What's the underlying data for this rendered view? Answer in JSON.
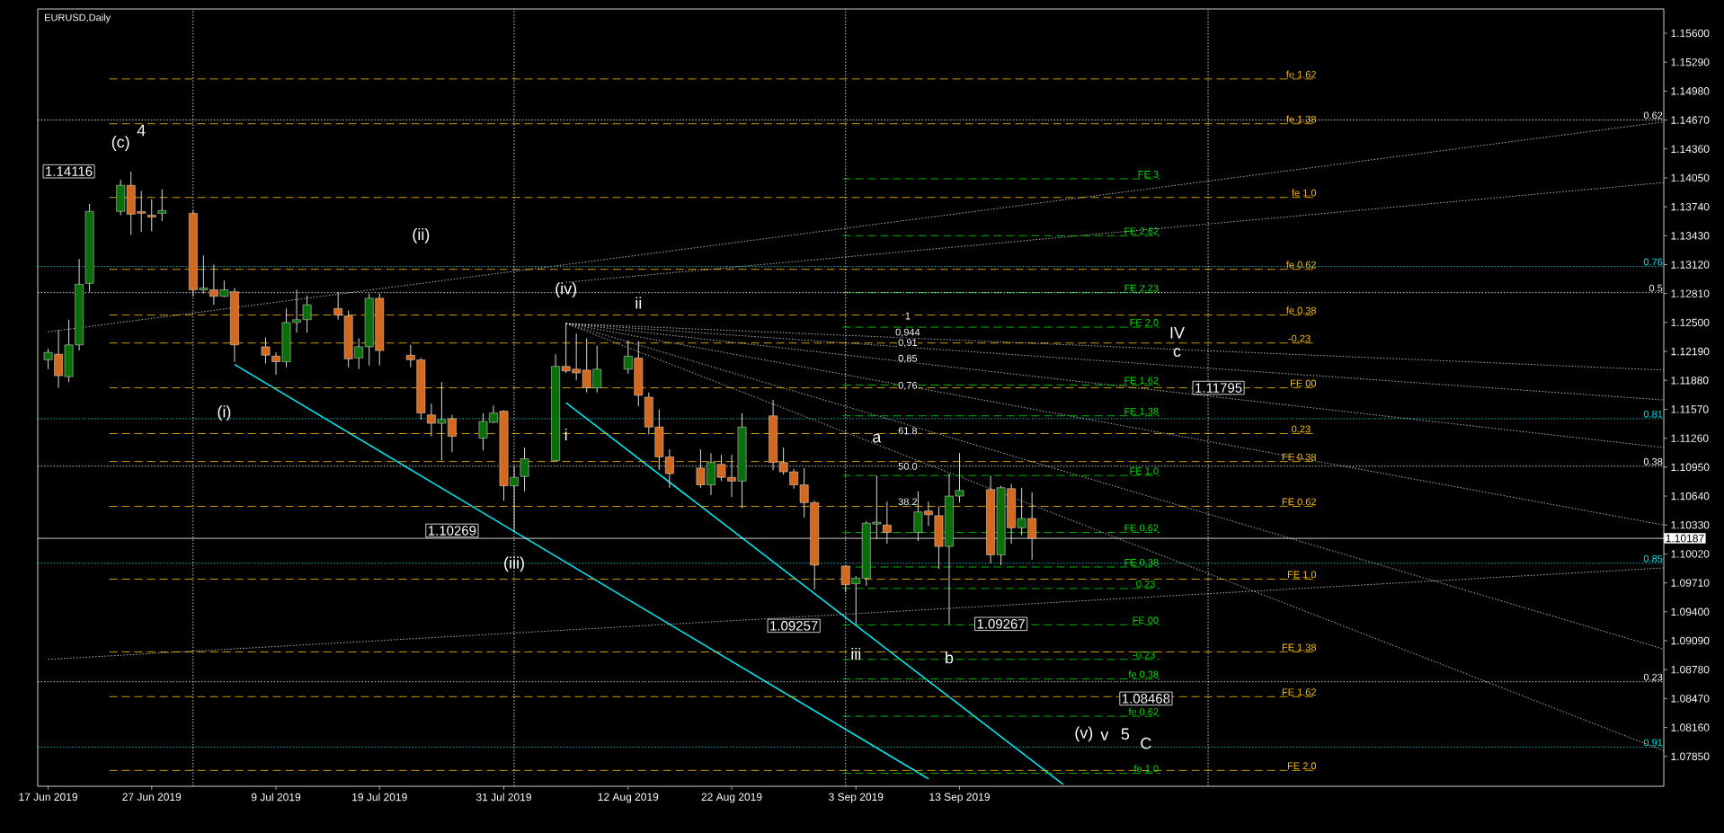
{
  "chart_data": {
    "type": "candlestick",
    "title": "EURUSD,Daily",
    "x": [
      "2019-06-17",
      "2019-06-18",
      "2019-06-19",
      "2019-06-20",
      "2019-06-21",
      "2019-06-24",
      "2019-06-25",
      "2019-06-26",
      "2019-06-27",
      "2019-06-28",
      "2019-07-01",
      "2019-07-02",
      "2019-07-03",
      "2019-07-04",
      "2019-07-05",
      "2019-07-08",
      "2019-07-09",
      "2019-07-10",
      "2019-07-11",
      "2019-07-12",
      "2019-07-15",
      "2019-07-16",
      "2019-07-17",
      "2019-07-18",
      "2019-07-19",
      "2019-07-22",
      "2019-07-23",
      "2019-07-24",
      "2019-07-25",
      "2019-07-26",
      "2019-07-29",
      "2019-07-30",
      "2019-07-31",
      "2019-08-01",
      "2019-08-02",
      "2019-08-05",
      "2019-08-06",
      "2019-08-07",
      "2019-08-08",
      "2019-08-09",
      "2019-08-12",
      "2019-08-13",
      "2019-08-14",
      "2019-08-15",
      "2019-08-16",
      "2019-08-19",
      "2019-08-20",
      "2019-08-21",
      "2019-08-22",
      "2019-08-23",
      "2019-08-26",
      "2019-08-27",
      "2019-08-28",
      "2019-08-29",
      "2019-08-30",
      "2019-09-02",
      "2019-09-03",
      "2019-09-04",
      "2019-09-05",
      "2019-09-06",
      "2019-09-09",
      "2019-09-10",
      "2019-09-11",
      "2019-09-12",
      "2019-09-13",
      "2019-09-16",
      "2019-09-17",
      "2019-09-18",
      "2019-09-19",
      "2019-09-20"
    ],
    "ohlc": [
      [
        1.121,
        1.1222,
        1.12,
        1.1218
      ],
      [
        1.1216,
        1.1242,
        1.118,
        1.1193
      ],
      [
        1.1192,
        1.1253,
        1.1186,
        1.1226
      ],
      [
        1.1226,
        1.1318,
        1.122,
        1.1291
      ],
      [
        1.1292,
        1.1377,
        1.1283,
        1.1369
      ],
      [
        1.1369,
        1.1403,
        1.1365,
        1.1397
      ],
      [
        1.1397,
        1.14116,
        1.1344,
        1.1366
      ],
      [
        1.1369,
        1.1391,
        1.1347,
        1.1367
      ],
      [
        1.1365,
        1.1382,
        1.1348,
        1.1363
      ],
      [
        1.1367,
        1.1393,
        1.1359,
        1.137
      ],
      [
        1.1367,
        1.137,
        1.1278,
        1.1285
      ],
      [
        1.1285,
        1.1322,
        1.1281,
        1.1287
      ],
      [
        1.1285,
        1.1312,
        1.1269,
        1.1278
      ],
      [
        1.1278,
        1.1295,
        1.1277,
        1.1285
      ],
      [
        1.1283,
        1.1287,
        1.1208,
        1.1226
      ],
      [
        1.1224,
        1.1234,
        1.1206,
        1.1215
      ],
      [
        1.1214,
        1.1218,
        1.1194,
        1.1208
      ],
      [
        1.1208,
        1.1265,
        1.1202,
        1.125
      ],
      [
        1.125,
        1.1285,
        1.1239,
        1.1253
      ],
      [
        1.1253,
        1.1279,
        1.1239,
        1.1269
      ],
      [
        1.1265,
        1.1283,
        1.1253,
        1.1258
      ],
      [
        1.1257,
        1.1263,
        1.1202,
        1.1211
      ],
      [
        1.1212,
        1.1233,
        1.12,
        1.1224
      ],
      [
        1.1224,
        1.1281,
        1.1204,
        1.1276
      ],
      [
        1.1276,
        1.1281,
        1.1204,
        1.122
      ],
      [
        1.1215,
        1.1226,
        1.1202,
        1.121
      ],
      [
        1.121,
        1.1212,
        1.1146,
        1.1153
      ],
      [
        1.1151,
        1.1163,
        1.1128,
        1.1142
      ],
      [
        1.1142,
        1.1186,
        1.1102,
        1.1146
      ],
      [
        1.1147,
        1.1151,
        1.1111,
        1.1128
      ],
      [
        1.1126,
        1.1153,
        1.1113,
        1.1144
      ],
      [
        1.1143,
        1.1161,
        1.1142,
        1.1153
      ],
      [
        1.1155,
        1.1156,
        1.1059,
        1.1075
      ],
      [
        1.1075,
        1.1096,
        1.10269,
        1.1084
      ],
      [
        1.1085,
        1.1116,
        1.1069,
        1.1104
      ],
      [
        1.1102,
        1.1216,
        1.1102,
        1.1203
      ],
      [
        1.1203,
        1.1249,
        1.1196,
        1.1198
      ],
      [
        1.12,
        1.1238,
        1.1188,
        1.1196
      ],
      [
        1.1199,
        1.1233,
        1.1175,
        1.118
      ],
      [
        1.118,
        1.1225,
        1.1175,
        1.12
      ],
      [
        1.12,
        1.1231,
        1.1195,
        1.1214
      ],
      [
        1.1212,
        1.123,
        1.116,
        1.1172
      ],
      [
        1.117,
        1.1175,
        1.113,
        1.1138
      ],
      [
        1.1138,
        1.1157,
        1.1092,
        1.1106
      ],
      [
        1.1106,
        1.1114,
        1.1073,
        1.1088
      ],
      [
        1.1094,
        1.1114,
        1.1073,
        1.1076
      ],
      [
        1.1076,
        1.111,
        1.1065,
        1.11
      ],
      [
        1.1098,
        1.1108,
        1.108,
        1.1084
      ],
      [
        1.1084,
        1.1108,
        1.1063,
        1.108
      ],
      [
        1.108,
        1.1153,
        1.1051,
        1.1138
      ],
      [
        1.115,
        1.1167,
        1.1092,
        1.11
      ],
      [
        1.11,
        1.1116,
        1.1087,
        1.109
      ],
      [
        1.109,
        1.1093,
        1.1072,
        1.1076
      ],
      [
        1.1076,
        1.1094,
        1.1041,
        1.1057
      ],
      [
        1.1057,
        1.1059,
        1.0964,
        1.099
      ],
      [
        1.0989,
        1.099,
        1.0961,
        1.0969
      ],
      [
        1.097,
        1.0978,
        1.09257,
        1.0976
      ],
      [
        1.0976,
        1.1037,
        1.0968,
        1.1035
      ],
      [
        1.1034,
        1.1086,
        1.1018,
        1.1036
      ],
      [
        1.1033,
        1.1058,
        1.1013,
        1.1025
      ],
      [
        1.1025,
        1.1069,
        1.1016,
        1.1047
      ],
      [
        1.1048,
        1.1058,
        1.1032,
        1.1044
      ],
      [
        1.1043,
        1.1053,
        1.0986,
        1.101
      ],
      [
        1.101,
        1.1088,
        1.09267,
        1.1064
      ],
      [
        1.1064,
        1.111,
        1.1057,
        1.107
      ],
      [
        1.1071,
        1.1086,
        1.0992,
        1.1001
      ],
      [
        1.1001,
        1.1075,
        1.099,
        1.1073
      ],
      [
        1.1072,
        1.1077,
        1.1013,
        1.103
      ],
      [
        1.103,
        1.1073,
        1.1022,
        1.104
      ],
      [
        1.104,
        1.1068,
        1.0996,
        1.10187
      ]
    ],
    "series": [
      {
        "type": "line",
        "x": [
          "2019-07-05",
          "2019-09-10"
        ],
        "values": [
          1.1205,
          1.0761
        ],
        "color": "#00e5ee",
        "line_style": "solid"
      },
      {
        "type": "line",
        "x": [
          "2019-08-06",
          "2019-09-23"
        ],
        "values": [
          1.1164,
          1.0755
        ],
        "color": "#00e5ee",
        "line_style": "solid"
      },
      {
        "type": "line",
        "x": [
          "2019-06-17",
          "2019-11-20"
        ],
        "values": [
          1.0889,
          1.0987
        ],
        "color": "#ffffff",
        "line_style": "dotted"
      },
      {
        "type": "line",
        "x": [
          "2019-06-17",
          "2019-11-20"
        ],
        "values": [
          1.124,
          1.1465
        ],
        "color": "#ffffff",
        "line_style": "dotted"
      },
      {
        "type": "line",
        "x": [
          "2019-08-06",
          "2019-11-20"
        ],
        "values": [
          1.1293,
          1.14
        ],
        "color": "#ffffff",
        "line_style": "dotted"
      },
      {
        "type": "line",
        "x": [
          "2019-08-06",
          "2019-11-20"
        ],
        "values": [
          1.1249,
          1.1199
        ],
        "color": "#ffffff",
        "line_style": "dotted"
      },
      {
        "type": "line",
        "x": [
          "2019-08-06",
          "2019-11-20"
        ],
        "values": [
          1.1249,
          1.1167
        ],
        "color": "#ffffff",
        "line_style": "dotted"
      },
      {
        "type": "line",
        "x": [
          "2019-08-06",
          "2019-11-20"
        ],
        "values": [
          1.1249,
          1.1116
        ],
        "color": "#ffffff",
        "line_style": "dotted"
      },
      {
        "type": "line",
        "x": [
          "2019-08-06",
          "2019-11-20"
        ],
        "values": [
          1.1249,
          1.1033
        ],
        "color": "#ffffff",
        "line_style": "dotted"
      },
      {
        "type": "line",
        "x": [
          "2019-08-06",
          "2019-11-20"
        ],
        "values": [
          1.1249,
          1.09
        ],
        "color": "#ffffff",
        "line_style": "dotted"
      },
      {
        "type": "line",
        "x": [
          "2019-08-06",
          "2019-11-20"
        ],
        "values": [
          1.1249,
          1.0791
        ],
        "color": "#ffffff",
        "line_style": "dotted"
      }
    ],
    "xlim": [
      "2019-06-16",
      "2019-11-20"
    ],
    "xticks": [
      {
        "value": "2019-06-17",
        "label": "17 Jun 2019"
      },
      {
        "value": "2019-06-27",
        "label": "27 Jun 2019"
      },
      {
        "value": "2019-07-09",
        "label": "9 Jul 2019"
      },
      {
        "value": "2019-07-19",
        "label": "19 Jul 2019"
      },
      {
        "value": "2019-07-31",
        "label": "31 Jul 2019"
      },
      {
        "value": "2019-08-12",
        "label": "12 Aug 2019"
      },
      {
        "value": "2019-08-22",
        "label": "22 Aug 2019"
      },
      {
        "value": "2019-09-03",
        "label": "3 Sep 2019"
      },
      {
        "value": "2019-09-13",
        "label": "13 Sep 2019"
      }
    ],
    "ylim": [
      1.0753,
      1.1586
    ],
    "yticks": [
      {
        "value": 1.156,
        "label": "1.15600"
      },
      {
        "value": 1.1529,
        "label": "1.15290"
      },
      {
        "value": 1.1498,
        "label": "1.14980"
      },
      {
        "value": 1.1467,
        "label": "1.14670"
      },
      {
        "value": 1.1436,
        "label": "1.14360"
      },
      {
        "value": 1.1405,
        "label": "1.14050"
      },
      {
        "value": 1.1374,
        "label": "1.13740"
      },
      {
        "value": 1.1343,
        "label": "1.13430"
      },
      {
        "value": 1.1312,
        "label": "1.13120"
      },
      {
        "value": 1.1281,
        "label": "1.12810"
      },
      {
        "value": 1.125,
        "label": "1.12500"
      },
      {
        "value": 1.1219,
        "label": "1.12190"
      },
      {
        "value": 1.1188,
        "label": "1.11880"
      },
      {
        "value": 1.1157,
        "label": "1.11570"
      },
      {
        "value": 1.1126,
        "label": "1.11260"
      },
      {
        "value": 1.1095,
        "label": "1.10950"
      },
      {
        "value": 1.1064,
        "label": "1.10640"
      },
      {
        "value": 1.1033,
        "label": "1.10330"
      },
      {
        "value": 1.1002,
        "label": "1.10020"
      },
      {
        "value": 1.0971,
        "label": "1.09710"
      },
      {
        "value": 1.094,
        "label": "1.09400"
      },
      {
        "value": 1.0909,
        "label": "1.09090"
      },
      {
        "value": 1.0878,
        "label": "1.08780"
      },
      {
        "value": 1.0847,
        "label": "1.08470"
      },
      {
        "value": 1.0816,
        "label": "1.08160"
      },
      {
        "value": 1.0785,
        "label": "1.07850"
      }
    ],
    "ref_lines": [
      {
        "axis": "y",
        "value": 1.1511,
        "label": "fe 1.62",
        "color": "#ffc000",
        "line_style": "dashed"
      },
      {
        "axis": "y",
        "value": 1.1463,
        "label": "fe 1.38",
        "color": "#ffc000",
        "line_style": "dashed"
      },
      {
        "axis": "y",
        "value": 1.1384,
        "label": "fe 1.0",
        "color": "#ffc000",
        "line_style": "dashed"
      },
      {
        "axis": "y",
        "value": 1.1307,
        "label": "fe 0.62",
        "color": "#ffc000",
        "line_style": "dashed"
      },
      {
        "axis": "y",
        "value": 1.1258,
        "label": "fe 0.38",
        "color": "#ffc000",
        "line_style": "dashed"
      },
      {
        "axis": "y",
        "value": 1.1228,
        "color": "#ffc000",
        "line_style": "dashed"
      },
      {
        "axis": "y",
        "value": 1.118,
        "label": "FE 00",
        "color": "#ffc000",
        "line_style": "dashed"
      },
      {
        "axis": "y",
        "value": 1.1131,
        "color": "#ffc000",
        "line_style": "dashed"
      },
      {
        "axis": "y",
        "value": 1.1101,
        "label": "FE 0.38",
        "color": "#ffc000",
        "line_style": "dashed"
      },
      {
        "axis": "y",
        "value": 1.1053,
        "label": "FE 0.62",
        "color": "#ffc000",
        "line_style": "dashed"
      },
      {
        "axis": "y",
        "value": 1.0975,
        "label": "FE 1.0",
        "color": "#ffc000",
        "line_style": "dashed"
      },
      {
        "axis": "y",
        "value": 1.0897,
        "label": "FE 1.38",
        "color": "#ffc000",
        "line_style": "dashed"
      },
      {
        "axis": "y",
        "value": 1.0849,
        "label": "FE 1.62",
        "color": "#ffc000",
        "line_style": "dashed"
      },
      {
        "axis": "y",
        "value": 1.077,
        "label": "FE 2.0",
        "color": "#ffc000",
        "line_style": "dashed"
      },
      {
        "axis": "y",
        "value": 1.1404,
        "label": "FE 3",
        "color": "#00e000",
        "line_style": "dashed"
      },
      {
        "axis": "y",
        "value": 1.1343,
        "label": "FE 2.62",
        "color": "#00e000",
        "line_style": "dashed"
      },
      {
        "axis": "y",
        "value": 1.1282,
        "label": "FE 2.23",
        "color": "#00e000",
        "line_style": "dashed"
      },
      {
        "axis": "y",
        "value": 1.1245,
        "label": "FE 2.0",
        "color": "#00e000",
        "line_style": "dashed"
      },
      {
        "axis": "y",
        "value": 1.1183,
        "label": "FE 1.62",
        "color": "#00e000",
        "line_style": "dashed"
      },
      {
        "axis": "y",
        "value": 1.115,
        "label": "FE 1.38",
        "color": "#00e000",
        "line_style": "dashed"
      },
      {
        "axis": "y",
        "value": 1.1086,
        "label": "FE 1.0",
        "color": "#00e000",
        "line_style": "dashed"
      },
      {
        "axis": "y",
        "value": 1.1025,
        "label": "FE 0.62",
        "color": "#00e000",
        "line_style": "dashed"
      },
      {
        "axis": "y",
        "value": 1.0988,
        "label": "FE 0.38",
        "color": "#00e000",
        "line_style": "dashed"
      },
      {
        "axis": "y",
        "value": 1.0965,
        "color": "#00e000",
        "line_style": "dashed"
      },
      {
        "axis": "y",
        "value": 1.0926,
        "label": "FE 00",
        "color": "#00e000",
        "line_style": "dashed"
      },
      {
        "axis": "y",
        "value": 1.0889,
        "color": "#00e000",
        "line_style": "dashed"
      },
      {
        "axis": "y",
        "value": 1.0868,
        "label": "fe 0.38",
        "color": "#00e000",
        "line_style": "dashed"
      },
      {
        "axis": "y",
        "value": 1.0828,
        "label": "fe 0.62",
        "color": "#00e000",
        "line_style": "dashed"
      },
      {
        "axis": "y",
        "value": 1.0767,
        "label": "fe 1.0",
        "color": "#00e000",
        "line_style": "dashed"
      },
      {
        "axis": "y",
        "value": 1.1467,
        "color": "#ffffff",
        "line_style": "dotted"
      },
      {
        "axis": "y",
        "value": 1.1282,
        "color": "#ffffff",
        "line_style": "dotted"
      },
      {
        "axis": "y",
        "value": 1.1096,
        "color": "#ffffff",
        "line_style": "dotted"
      },
      {
        "axis": "y",
        "value": 1.0865,
        "color": "#ffffff",
        "line_style": "dotted"
      },
      {
        "axis": "y",
        "value": 1.131,
        "color": "#00e5ee",
        "line_style": "dotted"
      },
      {
        "axis": "y",
        "value": 1.1147,
        "color": "#00e5ee",
        "line_style": "dotted"
      },
      {
        "axis": "y",
        "value": 1.0992,
        "color": "#00e5ee",
        "line_style": "dotted"
      },
      {
        "axis": "y",
        "value": 1.0795,
        "color": "#00e5ee",
        "line_style": "dotted"
      },
      {
        "axis": "y",
        "value": 1.10187,
        "label": "1.10187",
        "color": "#ffffff",
        "line_style": "solid"
      },
      {
        "axis": "x",
        "value": "2019-07-01",
        "color": "#ffffff",
        "line_style": "dotted"
      },
      {
        "axis": "x",
        "value": "2019-08-01",
        "color": "#ffffff",
        "line_style": "dotted"
      },
      {
        "axis": "x",
        "value": "2019-09-02",
        "color": "#ffffff",
        "line_style": "dotted"
      },
      {
        "axis": "x",
        "value": "2019-10-07",
        "color": "#ffffff",
        "line_style": "dotted"
      }
    ],
    "annotations": [
      "(c)",
      "4",
      "1.14116",
      "(ii)",
      "(i)",
      "(iv)",
      "ii",
      "i",
      "1.10269",
      "(iii)",
      "1.09257",
      "iii",
      "a",
      "b",
      "1.09267",
      "IV",
      "c",
      "1.11795",
      "(v)",
      "v",
      "5",
      "C",
      "1.08468",
      "1",
      "0,944",
      "0,91",
      "0,85",
      "0,76",
      "61.8",
      "50.0",
      "38.2",
      {
        "text": "-0.23",
        "x": "2019-10-17",
        "y": 1.1228
      },
      {
        "text": "0.23",
        "x": "2019-10-17",
        "y": 1.1131
      },
      {
        "text": "0.23",
        "x": "2019-10-02",
        "y": 1.0965
      },
      {
        "text": "-0.23",
        "x": "2019-10-02",
        "y": 1.0889
      },
      {
        "text": "0.62",
        "x": "2019-11-20",
        "y": 1.1467
      },
      {
        "text": "0.5",
        "x": "2019-11-20",
        "y": 1.1282
      },
      {
        "text": "0.38",
        "x": "2019-11-20",
        "y": 1.1096
      },
      {
        "text": "0.23",
        "x": "2019-11-20",
        "y": 1.0865
      },
      {
        "text": "0.76",
        "x": "2019-11-20",
        "y": 1.131
      },
      {
        "text": "0.81",
        "x": "2019-11-20",
        "y": 1.1147
      },
      {
        "text": "0.85",
        "x": "2019-11-20",
        "y": 1.0992
      },
      {
        "text": "0.91",
        "x": "2019-11-20",
        "y": 1.0795
      }
    ]
  }
}
